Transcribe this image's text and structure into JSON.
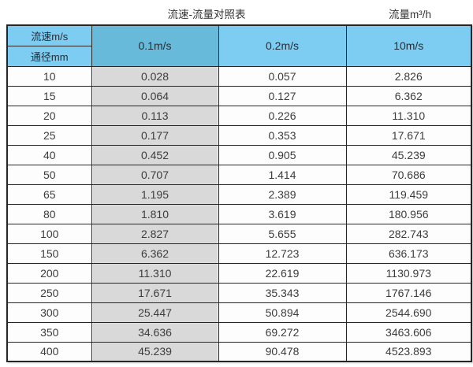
{
  "page_header": {
    "title": "流速-流量对照表",
    "unit_label": "流量m³/h"
  },
  "colors": {
    "header-blue": "#7dccf2",
    "highlight-blue": "#68bada",
    "highlight-gray": "#d9d9d9",
    "border-color": "#262626"
  },
  "chart_data": {
    "type": "table",
    "title": "流速-流量对照表",
    "unit": "流量m³/h",
    "corner_top_label": "流速m/s",
    "corner_bottom_label": "通径mm",
    "columns": [
      "0.1m/s",
      "0.2m/s",
      "10m/s"
    ],
    "highlighted_column": "0.1m/s",
    "rows": [
      {
        "diameter_mm": "10",
        "values": [
          "0.028",
          "0.057",
          "2.826"
        ]
      },
      {
        "diameter_mm": "15",
        "values": [
          "0.064",
          "0.127",
          "6.362"
        ]
      },
      {
        "diameter_mm": "20",
        "values": [
          "0.113",
          "0.226",
          "11.310"
        ]
      },
      {
        "diameter_mm": "25",
        "values": [
          "0.177",
          "0.353",
          "17.671"
        ]
      },
      {
        "diameter_mm": "40",
        "values": [
          "0.452",
          "0.905",
          "45.239"
        ]
      },
      {
        "diameter_mm": "50",
        "values": [
          "0.707",
          "1.414",
          "70.686"
        ]
      },
      {
        "diameter_mm": "65",
        "values": [
          "1.195",
          "2.389",
          "119.459"
        ]
      },
      {
        "diameter_mm": "80",
        "values": [
          "1.810",
          "3.619",
          "180.956"
        ]
      },
      {
        "diameter_mm": "100",
        "values": [
          "2.827",
          "5.655",
          "282.743"
        ]
      },
      {
        "diameter_mm": "150",
        "values": [
          "6.362",
          "12.723",
          "636.173"
        ]
      },
      {
        "diameter_mm": "200",
        "values": [
          "11.310",
          "22.619",
          "1130.973"
        ]
      },
      {
        "diameter_mm": "250",
        "values": [
          "17.671",
          "35.343",
          "1767.146"
        ]
      },
      {
        "diameter_mm": "300",
        "values": [
          "25.447",
          "50.894",
          "2544.690"
        ]
      },
      {
        "diameter_mm": "350",
        "values": [
          "34.636",
          "69.272",
          "3463.606"
        ]
      },
      {
        "diameter_mm": "400",
        "values": [
          "45.239",
          "90.478",
          "4523.893"
        ]
      }
    ]
  }
}
